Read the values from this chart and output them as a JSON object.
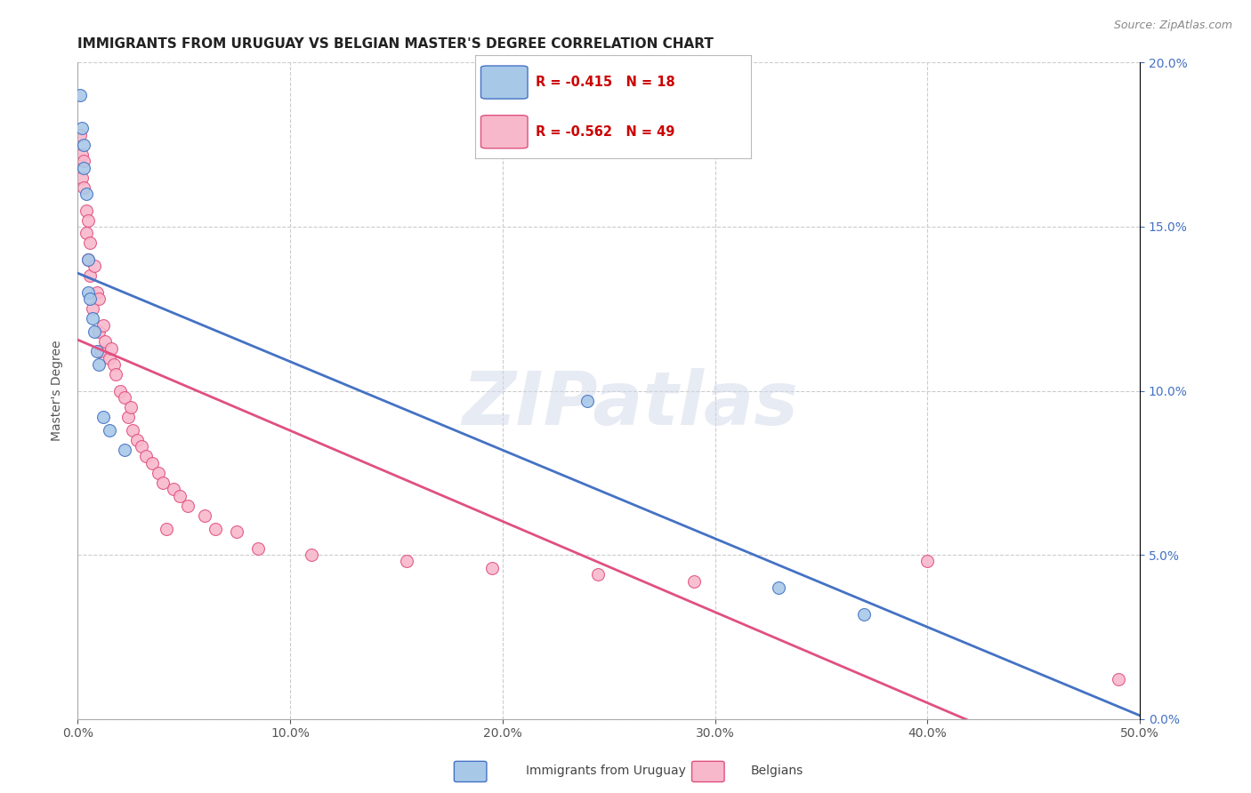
{
  "title": "IMMIGRANTS FROM URUGUAY VS BELGIAN MASTER'S DEGREE CORRELATION CHART",
  "source": "Source: ZipAtlas.com",
  "ylabel": "Master's Degree",
  "legend_label1": "Immigrants from Uruguay",
  "legend_label2": "Belgians",
  "R1": -0.415,
  "N1": 18,
  "R2": -0.562,
  "N2": 49,
  "color1": "#a8c8e8",
  "color2": "#f8b8cc",
  "line_color1": "#4472c4",
  "line_color2": "#e05080",
  "right_tick_color": "#4472c4",
  "xlim": [
    0.0,
    0.5
  ],
  "ylim": [
    0.0,
    0.2
  ],
  "xticks": [
    0.0,
    0.1,
    0.2,
    0.3,
    0.4,
    0.5
  ],
  "yticks": [
    0.0,
    0.05,
    0.1,
    0.15,
    0.2
  ],
  "grid_color": "#cccccc",
  "background_color": "#ffffff",
  "watermark": "ZIPatlas",
  "uru_x": [
    0.001,
    0.002,
    0.003,
    0.003,
    0.004,
    0.005,
    0.005,
    0.006,
    0.007,
    0.008,
    0.009,
    0.01,
    0.012,
    0.015,
    0.022,
    0.24,
    0.33,
    0.37
  ],
  "uru_y": [
    0.19,
    0.18,
    0.175,
    0.168,
    0.16,
    0.14,
    0.13,
    0.128,
    0.122,
    0.118,
    0.112,
    0.108,
    0.092,
    0.088,
    0.082,
    0.097,
    0.04,
    0.032
  ],
  "bel_x": [
    0.001,
    0.002,
    0.002,
    0.003,
    0.003,
    0.004,
    0.004,
    0.005,
    0.005,
    0.006,
    0.006,
    0.007,
    0.008,
    0.009,
    0.01,
    0.01,
    0.011,
    0.012,
    0.013,
    0.015,
    0.016,
    0.017,
    0.018,
    0.02,
    0.022,
    0.024,
    0.025,
    0.026,
    0.028,
    0.03,
    0.032,
    0.035,
    0.038,
    0.04,
    0.042,
    0.045,
    0.048,
    0.052,
    0.06,
    0.065,
    0.075,
    0.085,
    0.11,
    0.155,
    0.195,
    0.245,
    0.29,
    0.4,
    0.49
  ],
  "bel_y": [
    0.178,
    0.172,
    0.165,
    0.17,
    0.162,
    0.155,
    0.148,
    0.152,
    0.14,
    0.145,
    0.135,
    0.125,
    0.138,
    0.13,
    0.128,
    0.118,
    0.112,
    0.12,
    0.115,
    0.11,
    0.113,
    0.108,
    0.105,
    0.1,
    0.098,
    0.092,
    0.095,
    0.088,
    0.085,
    0.083,
    0.08,
    0.078,
    0.075,
    0.072,
    0.058,
    0.07,
    0.068,
    0.065,
    0.062,
    0.058,
    0.057,
    0.052,
    0.05,
    0.048,
    0.046,
    0.044,
    0.042,
    0.048,
    0.012
  ],
  "title_fontsize": 11,
  "tick_fontsize": 10,
  "marker_size": 100,
  "watermark_fontsize": 60,
  "watermark_color": "#d0d8e8",
  "watermark_alpha": 0.5
}
